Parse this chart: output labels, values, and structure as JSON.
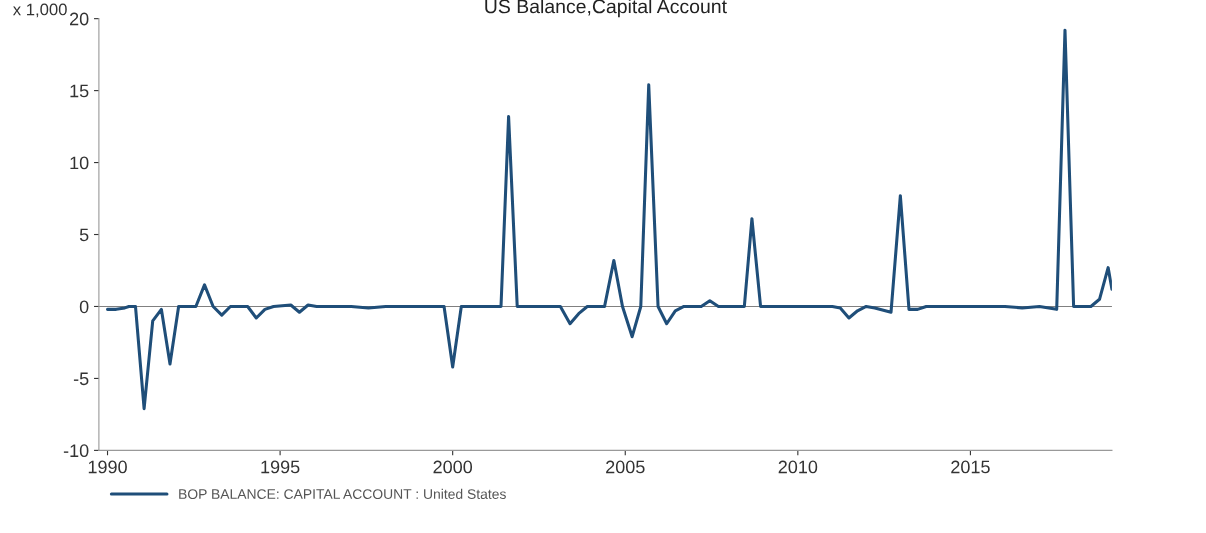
{
  "chart_data": {
    "type": "line",
    "title": "US Balance,Capital Account",
    "ylabel": "x 1,000",
    "xlim": [
      1989.75,
      2019.1
    ],
    "xticks": [
      1990,
      1995,
      2000,
      2005,
      2010,
      2015
    ],
    "ylim": [
      -10,
      20
    ],
    "yticks": [
      -10,
      -5,
      0,
      5,
      10,
      15,
      20
    ],
    "grid": false,
    "legend": "bottom",
    "marker": "none",
    "line_style": "solid",
    "ref_lines": [
      {
        "axis": "y",
        "value": 0,
        "color": "#808080"
      }
    ],
    "series": [
      {
        "name": "BOP BALANCE: CAPITAL ACCOUNT : United States",
        "color": "#1f4e79",
        "x": [
          1990.0,
          1990.25,
          1990.5,
          1990.62,
          1990.81,
          1991.06,
          1991.31,
          1991.56,
          1991.81,
          1992.06,
          1992.31,
          1992.56,
          1992.81,
          1993.06,
          1993.31,
          1993.56,
          1994.06,
          1994.31,
          1994.56,
          1994.81,
          1995.31,
          1995.56,
          1995.81,
          1996.06,
          1997.06,
          1997.56,
          1998.06,
          1999.56,
          1999.75,
          2000.0,
          2000.25,
          2001.4,
          2001.62,
          2001.87,
          2002.62,
          2003.12,
          2003.4,
          2003.65,
          2003.9,
          2004.4,
          2004.67,
          2004.92,
          2005.2,
          2005.45,
          2005.68,
          2005.95,
          2006.2,
          2006.45,
          2006.7,
          2007.2,
          2007.45,
          2007.7,
          2008.45,
          2008.67,
          2008.92,
          2010.0,
          2011.0,
          2011.23,
          2011.48,
          2011.73,
          2011.98,
          2012.23,
          2012.7,
          2012.97,
          2013.22,
          2013.47,
          2013.72,
          2014.22,
          2016.0,
          2016.5,
          2017.0,
          2017.5,
          2017.74,
          2017.99,
          2018.24,
          2018.49,
          2018.74,
          2018.99,
          2019.1
        ],
        "values": [
          -0.2,
          -0.2,
          -0.1,
          0,
          0,
          -7.1,
          -1.0,
          -0.2,
          -4.0,
          0,
          0,
          0,
          1.5,
          0,
          -0.6,
          0,
          0,
          -0.8,
          -0.2,
          0,
          0.1,
          -0.4,
          0.1,
          0,
          0,
          -0.1,
          0,
          0,
          0,
          -4.2,
          0,
          0,
          13.2,
          0,
          0,
          0,
          -1.2,
          -0.5,
          0,
          0,
          3.2,
          0,
          -2.1,
          0,
          15.4,
          0,
          -1.2,
          -0.3,
          0,
          0,
          0.4,
          0,
          0,
          6.1,
          0,
          0,
          0,
          -0.1,
          -0.8,
          -0.3,
          0,
          -0.1,
          -0.4,
          7.7,
          -0.2,
          -0.2,
          0,
          0,
          0,
          -0.1,
          0,
          -0.2,
          19.2,
          0,
          0,
          0,
          0.5,
          2.7,
          1.2
        ]
      }
    ]
  }
}
